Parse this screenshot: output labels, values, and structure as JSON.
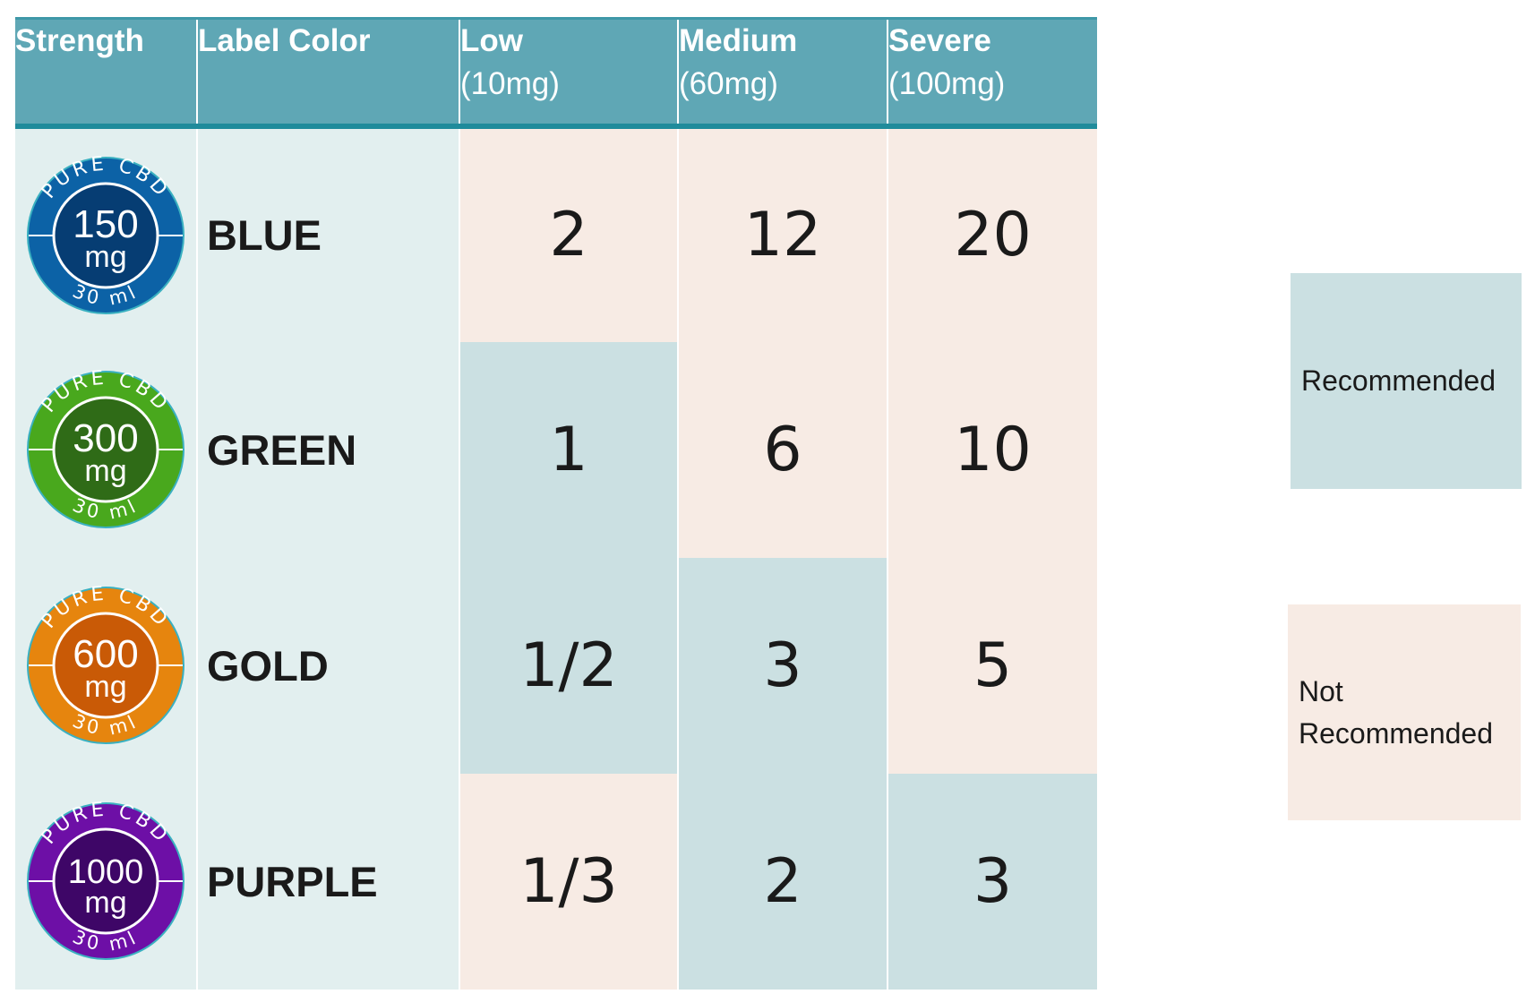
{
  "table": {
    "headers": {
      "strength": "Strength",
      "label_color": "Label Color",
      "low": [
        "Low",
        "(10mg)"
      ],
      "medium": [
        "Medium",
        "(60mg)"
      ],
      "severe": [
        "Severe",
        "(100mg)"
      ]
    },
    "rows": [
      {
        "badge": {
          "top_text": "PURE CBD",
          "strength": "150",
          "unit": "mg",
          "volume": "30 ml",
          "ring_color": "#0c62a6",
          "center_color": "#063d73"
        },
        "label": "BLUE",
        "doses": [
          {
            "value": "2",
            "status": "not-recommended"
          },
          {
            "value": "12",
            "status": "not-recommended"
          },
          {
            "value": "20",
            "status": "not-recommended"
          }
        ]
      },
      {
        "badge": {
          "top_text": "PURE CBD",
          "strength": "300",
          "unit": "mg",
          "volume": "30 ml",
          "ring_color": "#49a81d",
          "center_color": "#2f6b17"
        },
        "label": "GREEN",
        "doses": [
          {
            "value": "1",
            "status": "recommended"
          },
          {
            "value": "6",
            "status": "not-recommended"
          },
          {
            "value": "10",
            "status": "not-recommended"
          }
        ]
      },
      {
        "badge": {
          "top_text": "PURE CBD",
          "strength": "600",
          "unit": "mg",
          "volume": "30 ml",
          "ring_color": "#e6850e",
          "center_color": "#c95a06"
        },
        "label": "GOLD",
        "doses": [
          {
            "value": "1/2",
            "status": "recommended"
          },
          {
            "value": "3",
            "status": "recommended"
          },
          {
            "value": "5",
            "status": "not-recommended"
          }
        ]
      },
      {
        "badge": {
          "top_text": "PURE CBD",
          "strength": "1000",
          "unit": "mg",
          "volume": "30 ml",
          "ring_color": "#6d0fa6",
          "center_color": "#3e0667"
        },
        "label": "PURPLE",
        "doses": [
          {
            "value": "1/3",
            "status": "not-recommended"
          },
          {
            "value": "2",
            "status": "recommended"
          },
          {
            "value": "3",
            "status": "recommended"
          }
        ]
      }
    ]
  },
  "legend": {
    "recommended": {
      "label": "Recommended",
      "color": "#cbe0e2"
    },
    "not_recommended": {
      "label": "Not Recommended",
      "color": "#f7ebe4"
    }
  },
  "colors": {
    "header_bg": "#5fa7b5",
    "header_rule": "#1f8b9b",
    "label_bg": "#e2efef",
    "recommended": "#cbe0e2",
    "not_recommended": "#f7ebe4"
  }
}
